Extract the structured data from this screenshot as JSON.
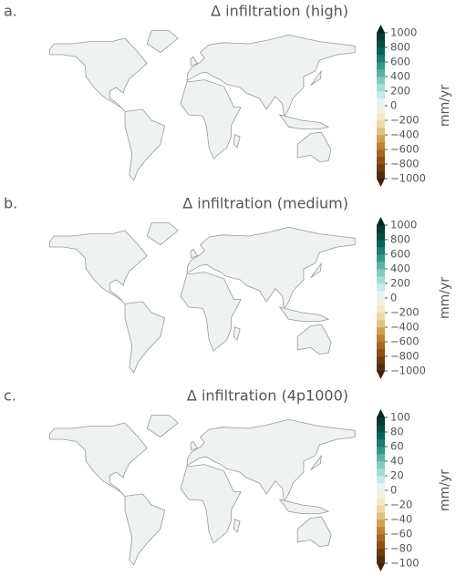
{
  "colors": [
    "#543005",
    "#6f3e08",
    "#8c510a",
    "#a6661d",
    "#bf812d",
    "#d0a155",
    "#dfc27d",
    "#ecd7a7",
    "#f6e8c3",
    "#f5f0e3",
    "#e8f3f1",
    "#c7eae5",
    "#a6dcd3",
    "#80cdc1",
    "#5ab2a8",
    "#35978f",
    "#1b7d76",
    "#01665e",
    "#004f45",
    "#003c30"
  ],
  "under_color": "#3d2203",
  "over_color": "#00281f",
  "panels": [
    {
      "label": "a.",
      "title": "Δ infiltration (high)",
      "colorbar": {
        "lim": [
          -1000,
          1000
        ],
        "unit": "mm/yr",
        "ticks": [
          {
            "value": -1000,
            "label": "−1000"
          },
          {
            "value": -800,
            "label": "−800"
          },
          {
            "value": -600,
            "label": "−600"
          },
          {
            "value": -400,
            "label": "−400"
          },
          {
            "value": -200,
            "label": "−200"
          },
          0,
          200,
          400,
          600,
          800,
          1000
        ]
      }
    },
    {
      "label": "b.",
      "title": "Δ infiltration (medium)",
      "colorbar": {
        "lim": [
          -1000,
          1000
        ],
        "unit": "mm/yr",
        "ticks": [
          {
            "value": -1000,
            "label": "−1000"
          },
          {
            "value": -800,
            "label": "−800"
          },
          {
            "value": -600,
            "label": "−600"
          },
          {
            "value": -400,
            "label": "−400"
          },
          {
            "value": -200,
            "label": "−200"
          },
          0,
          200,
          400,
          600,
          800,
          1000
        ]
      }
    },
    {
      "label": "c.",
      "title": "Δ infiltration (4p1000)",
      "colorbar": {
        "lim": [
          -100,
          100
        ],
        "unit": "mm/yr",
        "ticks": [
          {
            "value": -100,
            "label": "−100"
          },
          {
            "value": -80,
            "label": "−80"
          },
          {
            "value": -60,
            "label": "−60"
          },
          {
            "value": -40,
            "label": "−40"
          },
          {
            "value": -20,
            "label": "−20"
          },
          0,
          20,
          40,
          60,
          80,
          100
        ]
      }
    }
  ]
}
